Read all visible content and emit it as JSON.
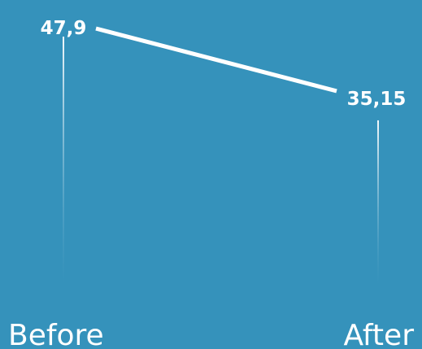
{
  "colors": {
    "background": "#3592bb",
    "line": "#ffffff",
    "text": "#ffffff",
    "stem_top": "#ffffff",
    "stem_bottom": "#3592bb"
  },
  "chart_data": {
    "type": "line",
    "title": "",
    "xlabel": "",
    "ylabel": "",
    "categories": [
      "Before",
      "After"
    ],
    "series": [
      {
        "values": [
          47.9,
          35.15
        ],
        "labels": [
          "47,9",
          "35,15"
        ]
      }
    ],
    "ylim": [
      0,
      52
    ],
    "grid": false,
    "legend": "none"
  }
}
